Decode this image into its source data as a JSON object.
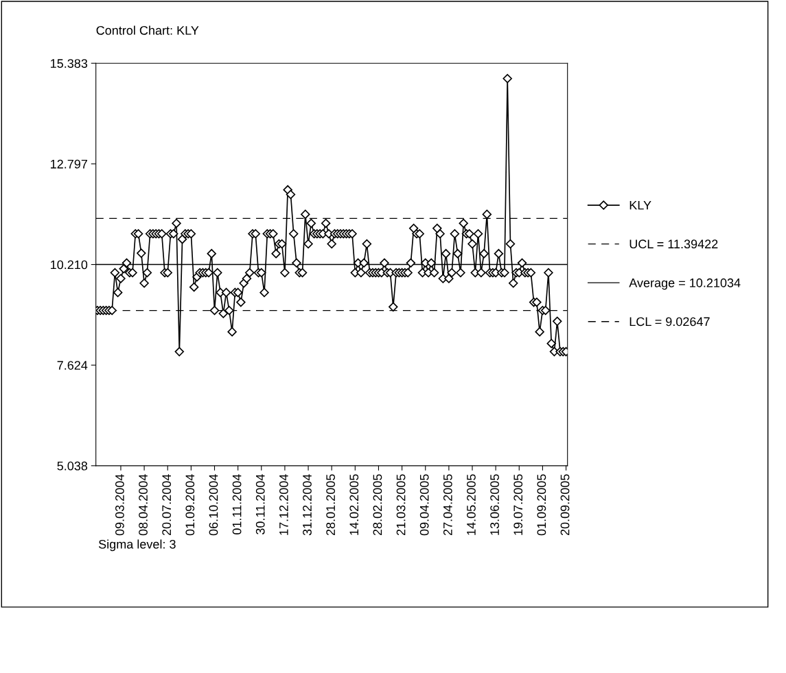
{
  "chart_data": {
    "type": "line",
    "title": "Control Chart: KLY",
    "categories": [
      null,
      null,
      null,
      null,
      null,
      null,
      null,
      null,
      "09.03.2004",
      null,
      null,
      null,
      null,
      null,
      null,
      null,
      "08.04.2004",
      null,
      null,
      null,
      null,
      null,
      null,
      null,
      "20.07.2004",
      null,
      null,
      null,
      null,
      null,
      null,
      null,
      "01.09.2004",
      null,
      null,
      null,
      null,
      null,
      null,
      null,
      "06.10.2004",
      null,
      null,
      null,
      null,
      null,
      null,
      null,
      "01.11.2004",
      null,
      null,
      null,
      null,
      null,
      null,
      null,
      "30.11.2004",
      null,
      null,
      null,
      null,
      null,
      null,
      null,
      "17.12.2004",
      null,
      null,
      null,
      null,
      null,
      null,
      null,
      "31.12.2004",
      null,
      null,
      null,
      null,
      null,
      null,
      null,
      "28.01.2005",
      null,
      null,
      null,
      null,
      null,
      null,
      null,
      "14.02.2005",
      null,
      null,
      null,
      null,
      null,
      null,
      null,
      "28.02.2005",
      null,
      null,
      null,
      null,
      null,
      null,
      null,
      "21.03.2005",
      null,
      null,
      null,
      null,
      null,
      null,
      null,
      "09.04.2005",
      null,
      null,
      null,
      null,
      null,
      null,
      null,
      "27.04.2005",
      null,
      null,
      null,
      null,
      null,
      null,
      null,
      "14.05.2005",
      null,
      null,
      null,
      null,
      null,
      null,
      null,
      "13.06.2005",
      null,
      null,
      null,
      null,
      null,
      null,
      null,
      "19.07.2005",
      null,
      null,
      null,
      null,
      null,
      null,
      null,
      "01.09.2005",
      null,
      null,
      null,
      null,
      null,
      null,
      null,
      "20.09.2005"
    ],
    "series": [
      {
        "name": "KLY",
        "color": "#000000",
        "values": [
          9.03,
          9.03,
          9.03,
          9.03,
          9.03,
          9.03,
          10.0,
          9.49,
          9.85,
          10.1,
          10.25,
          10.0,
          10.0,
          11.0,
          11.0,
          10.5,
          9.73,
          10.0,
          11.0,
          11.0,
          11.0,
          11.0,
          11.0,
          10.0,
          10.0,
          11.0,
          11.0,
          11.27,
          7.97,
          10.86,
          11.0,
          11.0,
          11.0,
          9.63,
          9.89,
          10.0,
          10.0,
          10.0,
          10.0,
          10.49,
          9.03,
          10.0,
          9.49,
          8.95,
          9.49,
          9.03,
          8.48,
          9.49,
          9.49,
          9.24,
          9.73,
          9.85,
          10.0,
          11.0,
          11.0,
          10.0,
          10.0,
          9.49,
          11.0,
          11.0,
          11.0,
          10.49,
          10.74,
          10.74,
          10.0,
          12.13,
          12.01,
          11.0,
          10.25,
          10.0,
          10.0,
          11.5,
          10.74,
          11.27,
          11.0,
          11.0,
          11.0,
          11.0,
          11.27,
          11.0,
          10.74,
          11.0,
          11.0,
          11.0,
          11.0,
          11.0,
          11.0,
          11.0,
          10.0,
          10.25,
          10.0,
          10.25,
          10.74,
          10.0,
          10.0,
          10.0,
          10.0,
          10.0,
          10.25,
          10.0,
          10.0,
          9.12,
          10.0,
          10.0,
          10.0,
          10.0,
          10.0,
          10.25,
          11.14,
          11.0,
          11.0,
          10.0,
          10.25,
          10.0,
          10.25,
          10.0,
          11.14,
          11.0,
          9.85,
          10.49,
          9.85,
          10.0,
          11.0,
          10.49,
          10.0,
          11.27,
          11.0,
          11.0,
          10.74,
          10.0,
          11.0,
          10.0,
          10.49,
          11.5,
          10.0,
          10.0,
          10.0,
          10.49,
          10.0,
          10.0,
          14.99,
          10.74,
          9.73,
          10.0,
          10.0,
          10.25,
          10.0,
          10.0,
          10.0,
          9.24,
          9.24,
          8.48,
          9.03,
          9.03,
          10.0,
          8.18,
          7.97,
          8.75,
          7.97,
          7.97,
          7.97
        ]
      }
    ],
    "ylim": [
      5.038,
      15.383
    ],
    "yticks": [
      15.383,
      12.797,
      {
        "value": 10.21,
        "label": "10.210"
      },
      7.624,
      5.038
    ],
    "ref_lines": [
      {
        "axis": "y",
        "value": 11.39422,
        "label": "UCL = 11.39422",
        "color": "#000000",
        "line_style": "dashed"
      },
      {
        "axis": "y",
        "value": 10.21034,
        "label": "Average = 10.21034",
        "color": "#000000",
        "line_style": "solid"
      },
      {
        "axis": "y",
        "value": 9.02647,
        "label": "LCL = 9.02647",
        "color": "#000000",
        "line_style": "dashed"
      }
    ],
    "annotations": [
      "Sigma level: 3"
    ],
    "marker": "diamond",
    "line_style": "solid",
    "grid": false,
    "legend": "right"
  }
}
